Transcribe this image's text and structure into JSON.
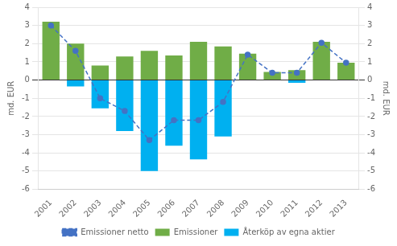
{
  "chart_data": {
    "type": "bar",
    "categories": [
      "2001",
      "2002",
      "2003",
      "2004",
      "2005",
      "2006",
      "2007",
      "2008",
      "2009",
      "2010",
      "2011",
      "2012",
      "2013"
    ],
    "series": [
      {
        "name": "Emissioner",
        "type": "bar",
        "color": "#70ad47",
        "values": [
          3.2,
          2.0,
          0.8,
          1.3,
          1.6,
          1.35,
          2.1,
          1.85,
          1.45,
          0.45,
          0.55,
          2.1,
          0.95
        ]
      },
      {
        "name": "Återköp av egna aktier",
        "type": "bar",
        "color": "#00b0f0",
        "values": [
          0.0,
          -0.35,
          -1.55,
          -2.8,
          -5.0,
          -3.6,
          -4.35,
          -3.1,
          0.0,
          0.0,
          -0.15,
          0.0,
          0.0
        ]
      },
      {
        "name": "Emissioner netto",
        "type": "line",
        "color": "#4472c4",
        "marker": "circle",
        "line_style": "dashed",
        "values": [
          3.0,
          1.6,
          -1.0,
          -1.7,
          -3.3,
          -2.2,
          -2.2,
          -1.2,
          1.4,
          0.4,
          0.4,
          2.05,
          0.95
        ]
      }
    ],
    "ylabel": "md. EUR",
    "ylim": [
      -6,
      4
    ],
    "yticks": [
      -6,
      -5,
      -4,
      -3,
      -2,
      -1,
      0,
      1,
      2,
      3,
      4
    ],
    "y2label": "md. EUR",
    "y2lim": [
      -6,
      4
    ],
    "y2ticks": [
      -6,
      -5,
      -4,
      -3,
      -2,
      -1,
      0,
      1,
      2,
      3,
      4
    ],
    "grid": true,
    "legend": "bottom"
  }
}
